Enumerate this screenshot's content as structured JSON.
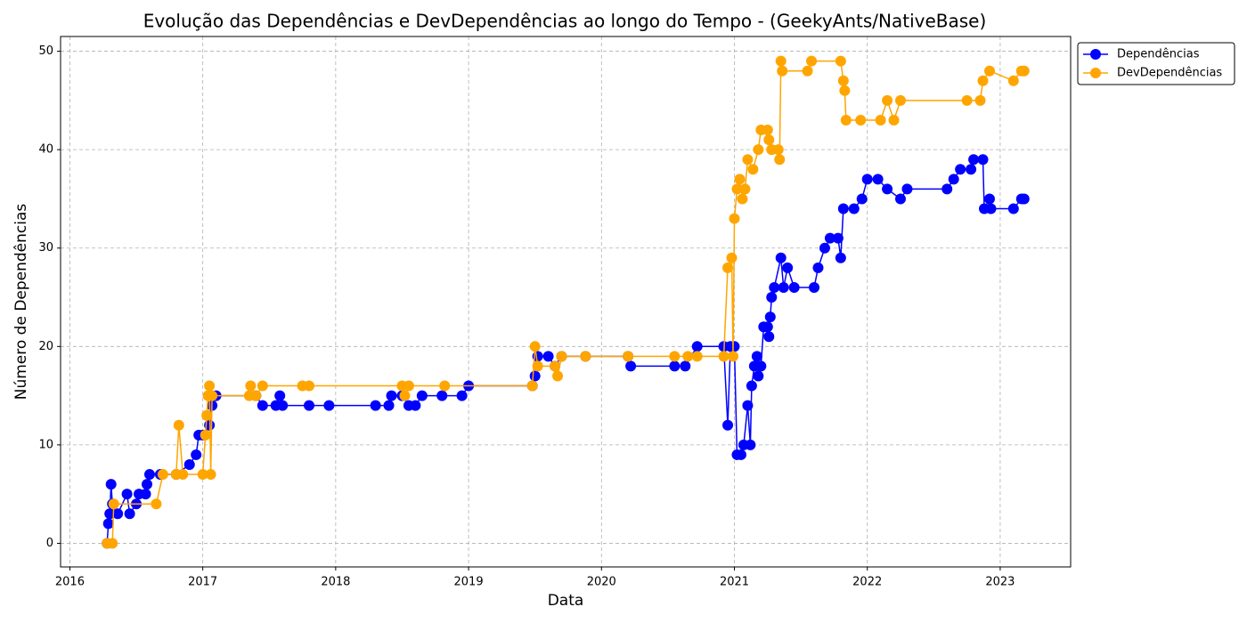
{
  "chart_data": {
    "type": "line",
    "title": "Evolução das Dependências e DevDependências ao longo do Tempo - (GeekyAnts/NativeBase)",
    "x_label": "Data",
    "y_label": "Número de Dependências",
    "xlim": [
      2015.93,
      2023.53
    ],
    "xticks": [
      2016,
      2017,
      2018,
      2019,
      2020,
      2021,
      2022,
      2023
    ],
    "ylim": [
      -2.4,
      51.5
    ],
    "yticks": [
      0,
      10,
      20,
      30,
      40,
      50
    ],
    "grid": true,
    "legend": "outside-upper-right",
    "series": [
      {
        "name": "Dependências",
        "color": "#0000ff",
        "x": [
          2016.28,
          2016.29,
          2016.3,
          2016.31,
          2016.32,
          2016.36,
          2016.43,
          2016.45,
          2016.5,
          2016.52,
          2016.57,
          2016.58,
          2016.6,
          2016.68,
          2016.8,
          2016.9,
          2016.95,
          2016.97,
          2017.0,
          2017.05,
          2017.07,
          2017.1,
          2017.4,
          2017.45,
          2017.55,
          2017.58,
          2017.6,
          2017.8,
          2017.95,
          2018.3,
          2018.4,
          2018.42,
          2018.5,
          2018.55,
          2018.6,
          2018.65,
          2018.8,
          2018.95,
          2019.0,
          2019.48,
          2019.5,
          2019.52,
          2019.6,
          2019.65,
          2019.7,
          2019.88,
          2020.2,
          2020.22,
          2020.55,
          2020.63,
          2020.72,
          2020.92,
          2020.95,
          2020.97,
          2021.0,
          2021.02,
          2021.05,
          2021.07,
          2021.1,
          2021.12,
          2021.13,
          2021.15,
          2021.17,
          2021.18,
          2021.2,
          2021.22,
          2021.25,
          2021.26,
          2021.27,
          2021.28,
          2021.3,
          2021.35,
          2021.37,
          2021.4,
          2021.45,
          2021.6,
          2021.63,
          2021.68,
          2021.72,
          2021.78,
          2021.8,
          2021.82,
          2021.9,
          2021.96,
          2022.0,
          2022.08,
          2022.15,
          2022.25,
          2022.3,
          2022.6,
          2022.65,
          2022.7,
          2022.78,
          2022.8,
          2022.87,
          2022.88,
          2022.92,
          2022.93,
          2023.1,
          2023.16,
          2023.18
        ],
        "values": [
          0,
          2,
          3,
          6,
          4,
          3,
          5,
          3,
          4,
          5,
          5,
          6,
          7,
          7,
          7,
          8,
          9,
          11,
          11,
          12,
          14,
          15,
          15,
          14,
          14,
          15,
          14,
          14,
          14,
          14,
          14,
          15,
          15,
          14,
          14,
          15,
          15,
          15,
          16,
          16,
          17,
          19,
          19,
          18,
          19,
          19,
          19,
          18,
          18,
          18,
          20,
          20,
          12,
          20,
          20,
          9,
          9,
          10,
          14,
          10,
          16,
          18,
          19,
          17,
          18,
          22,
          22,
          21,
          23,
          25,
          26,
          29,
          26,
          28,
          26,
          26,
          28,
          30,
          31,
          31,
          29,
          34,
          34,
          35,
          37,
          37,
          36,
          35,
          36,
          36,
          37,
          38,
          38,
          39,
          39,
          34,
          35,
          34,
          34,
          35,
          35
        ]
      },
      {
        "name": "DevDependências",
        "color": "#ffa500",
        "x": [
          2016.28,
          2016.32,
          2016.33,
          2016.65,
          2016.7,
          2016.8,
          2016.82,
          2016.85,
          2017.0,
          2017.02,
          2017.03,
          2017.04,
          2017.05,
          2017.06,
          2017.07,
          2017.35,
          2017.36,
          2017.4,
          2017.45,
          2017.75,
          2017.8,
          2018.5,
          2018.52,
          2018.55,
          2018.82,
          2019.48,
          2019.5,
          2019.52,
          2019.65,
          2019.67,
          2019.7,
          2019.88,
          2020.2,
          2020.55,
          2020.65,
          2020.72,
          2020.92,
          2020.95,
          2020.98,
          2020.99,
          2021.0,
          2021.02,
          2021.04,
          2021.06,
          2021.08,
          2021.1,
          2021.14,
          2021.18,
          2021.2,
          2021.25,
          2021.26,
          2021.28,
          2021.33,
          2021.34,
          2021.35,
          2021.36,
          2021.55,
          2021.58,
          2021.8,
          2021.82,
          2021.83,
          2021.84,
          2021.95,
          2022.1,
          2022.15,
          2022.2,
          2022.25,
          2022.75,
          2022.85,
          2022.87,
          2022.92,
          2023.1,
          2023.16,
          2023.18
        ],
        "values": [
          0,
          0,
          4,
          4,
          7,
          7,
          12,
          7,
          7,
          11,
          13,
          15,
          16,
          7,
          15,
          15,
          16,
          15,
          16,
          16,
          16,
          16,
          15,
          16,
          16,
          16,
          20,
          18,
          18,
          17,
          19,
          19,
          19,
          19,
          19,
          19,
          19,
          28,
          29,
          19,
          33,
          36,
          37,
          35,
          36,
          39,
          38,
          40,
          42,
          42,
          41,
          40,
          40,
          39,
          49,
          48,
          48,
          49,
          49,
          47,
          46,
          43,
          43,
          43,
          45,
          43,
          45,
          45,
          45,
          47,
          48,
          47,
          48,
          48
        ]
      }
    ]
  }
}
